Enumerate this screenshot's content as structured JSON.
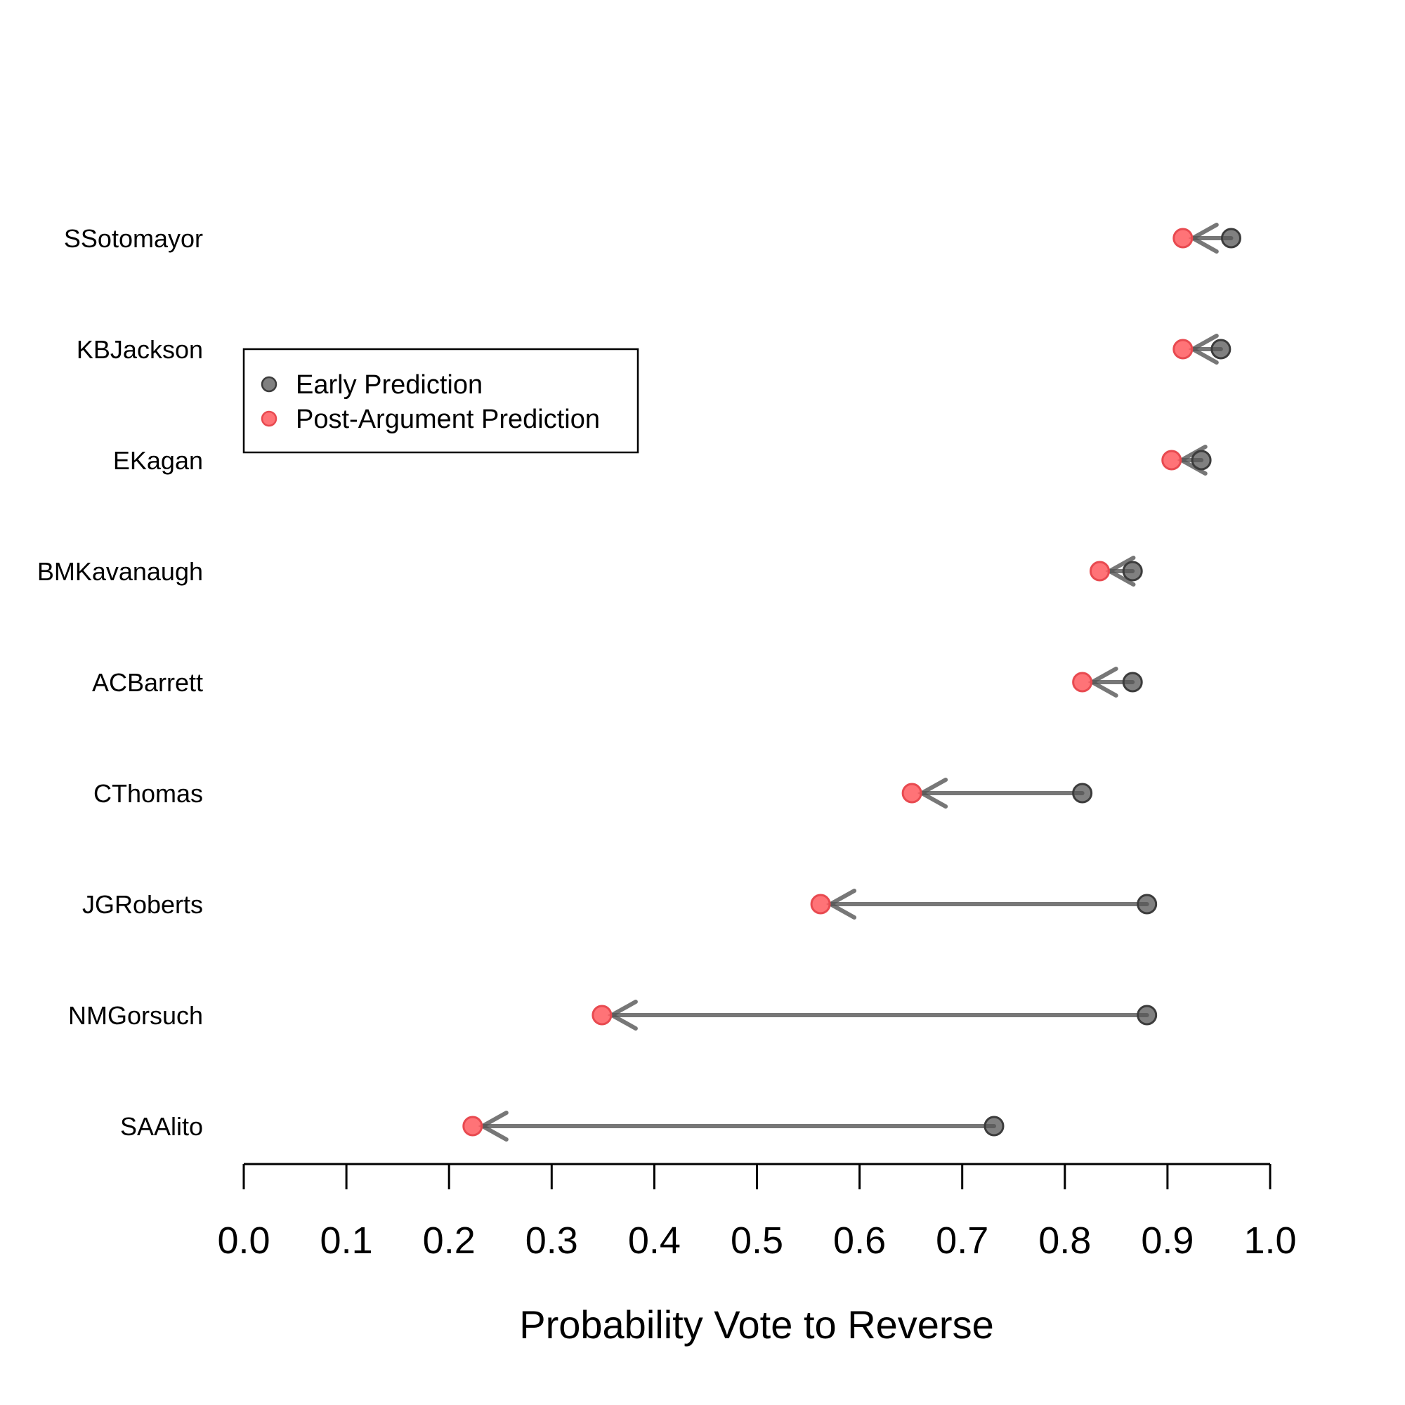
{
  "chart_data": {
    "type": "dumbbell-arrow",
    "title": "",
    "xlabel": "Probability Vote to Reverse",
    "ylabel": "",
    "xlim": [
      0.0,
      1.0
    ],
    "xticks": [
      "0.0",
      "0.1",
      "0.2",
      "0.3",
      "0.4",
      "0.5",
      "0.6",
      "0.7",
      "0.8",
      "0.9",
      "1.0"
    ],
    "grid": false,
    "legend_position": "upper-left",
    "series": [
      {
        "name": "Early Prediction",
        "color": "#555555"
      },
      {
        "name": "Post-Argument Prediction",
        "color": "#ff5a5f"
      }
    ],
    "justices": [
      {
        "name": "SSotomayor",
        "early": 0.962,
        "post": 0.915
      },
      {
        "name": "KBJackson",
        "early": 0.952,
        "post": 0.915
      },
      {
        "name": "EKagan",
        "early": 0.933,
        "post": 0.904
      },
      {
        "name": "BMKavanaugh",
        "early": 0.866,
        "post": 0.834
      },
      {
        "name": "ACBarrett",
        "early": 0.866,
        "post": 0.817
      },
      {
        "name": "CThomas",
        "early": 0.817,
        "post": 0.651
      },
      {
        "name": "JGRoberts",
        "early": 0.88,
        "post": 0.562
      },
      {
        "name": "NMGorsuch",
        "early": 0.88,
        "post": 0.349
      },
      {
        "name": "SAAlito",
        "early": 0.731,
        "post": 0.223
      }
    ]
  }
}
